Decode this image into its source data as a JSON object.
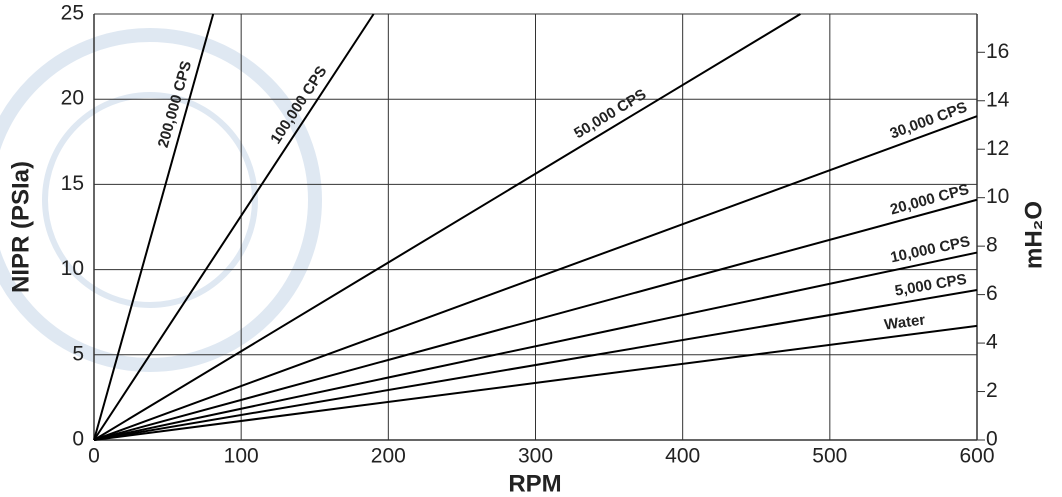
{
  "chart_data": {
    "type": "line",
    "xlabel": "RPM",
    "ylabel": "NIPR (PSIa)",
    "y2label": "mH₂O",
    "xlim": [
      0,
      600
    ],
    "xticks": [
      0,
      100,
      200,
      300,
      400,
      500,
      600
    ],
    "ylim": [
      0,
      25
    ],
    "yticks": [
      0,
      5,
      10,
      15,
      20,
      25
    ],
    "y2lim": [
      0,
      17.58
    ],
    "y2ticks": [
      0,
      2,
      4,
      6,
      8,
      10,
      12,
      14,
      16
    ],
    "grid": true,
    "series": [
      {
        "name": "200,000 CPS",
        "color": "#000000",
        "x": [
          0,
          81
        ],
        "values": [
          0,
          25
        ]
      },
      {
        "name": "100,000 CPS",
        "color": "#000000",
        "x": [
          0,
          190
        ],
        "values": [
          0,
          25
        ]
      },
      {
        "name": "50,000 CPS",
        "color": "#000000",
        "x": [
          0,
          480
        ],
        "values": [
          0,
          25
        ]
      },
      {
        "name": "30,000 CPS",
        "color": "#000000",
        "x": [
          0,
          600
        ],
        "values": [
          0,
          19
        ]
      },
      {
        "name": "20,000 CPS",
        "color": "#000000",
        "x": [
          0,
          600
        ],
        "values": [
          0,
          14.1
        ]
      },
      {
        "name": "10,000 CPS",
        "color": "#000000",
        "x": [
          0,
          600
        ],
        "values": [
          0,
          11
        ]
      },
      {
        "name": "5,000 CPS",
        "color": "#000000",
        "x": [
          0,
          600
        ],
        "values": [
          0,
          8.8
        ]
      },
      {
        "name": "Water",
        "color": "#000000",
        "x": [
          0,
          600
        ],
        "values": [
          0,
          6.7
        ]
      }
    ]
  }
}
